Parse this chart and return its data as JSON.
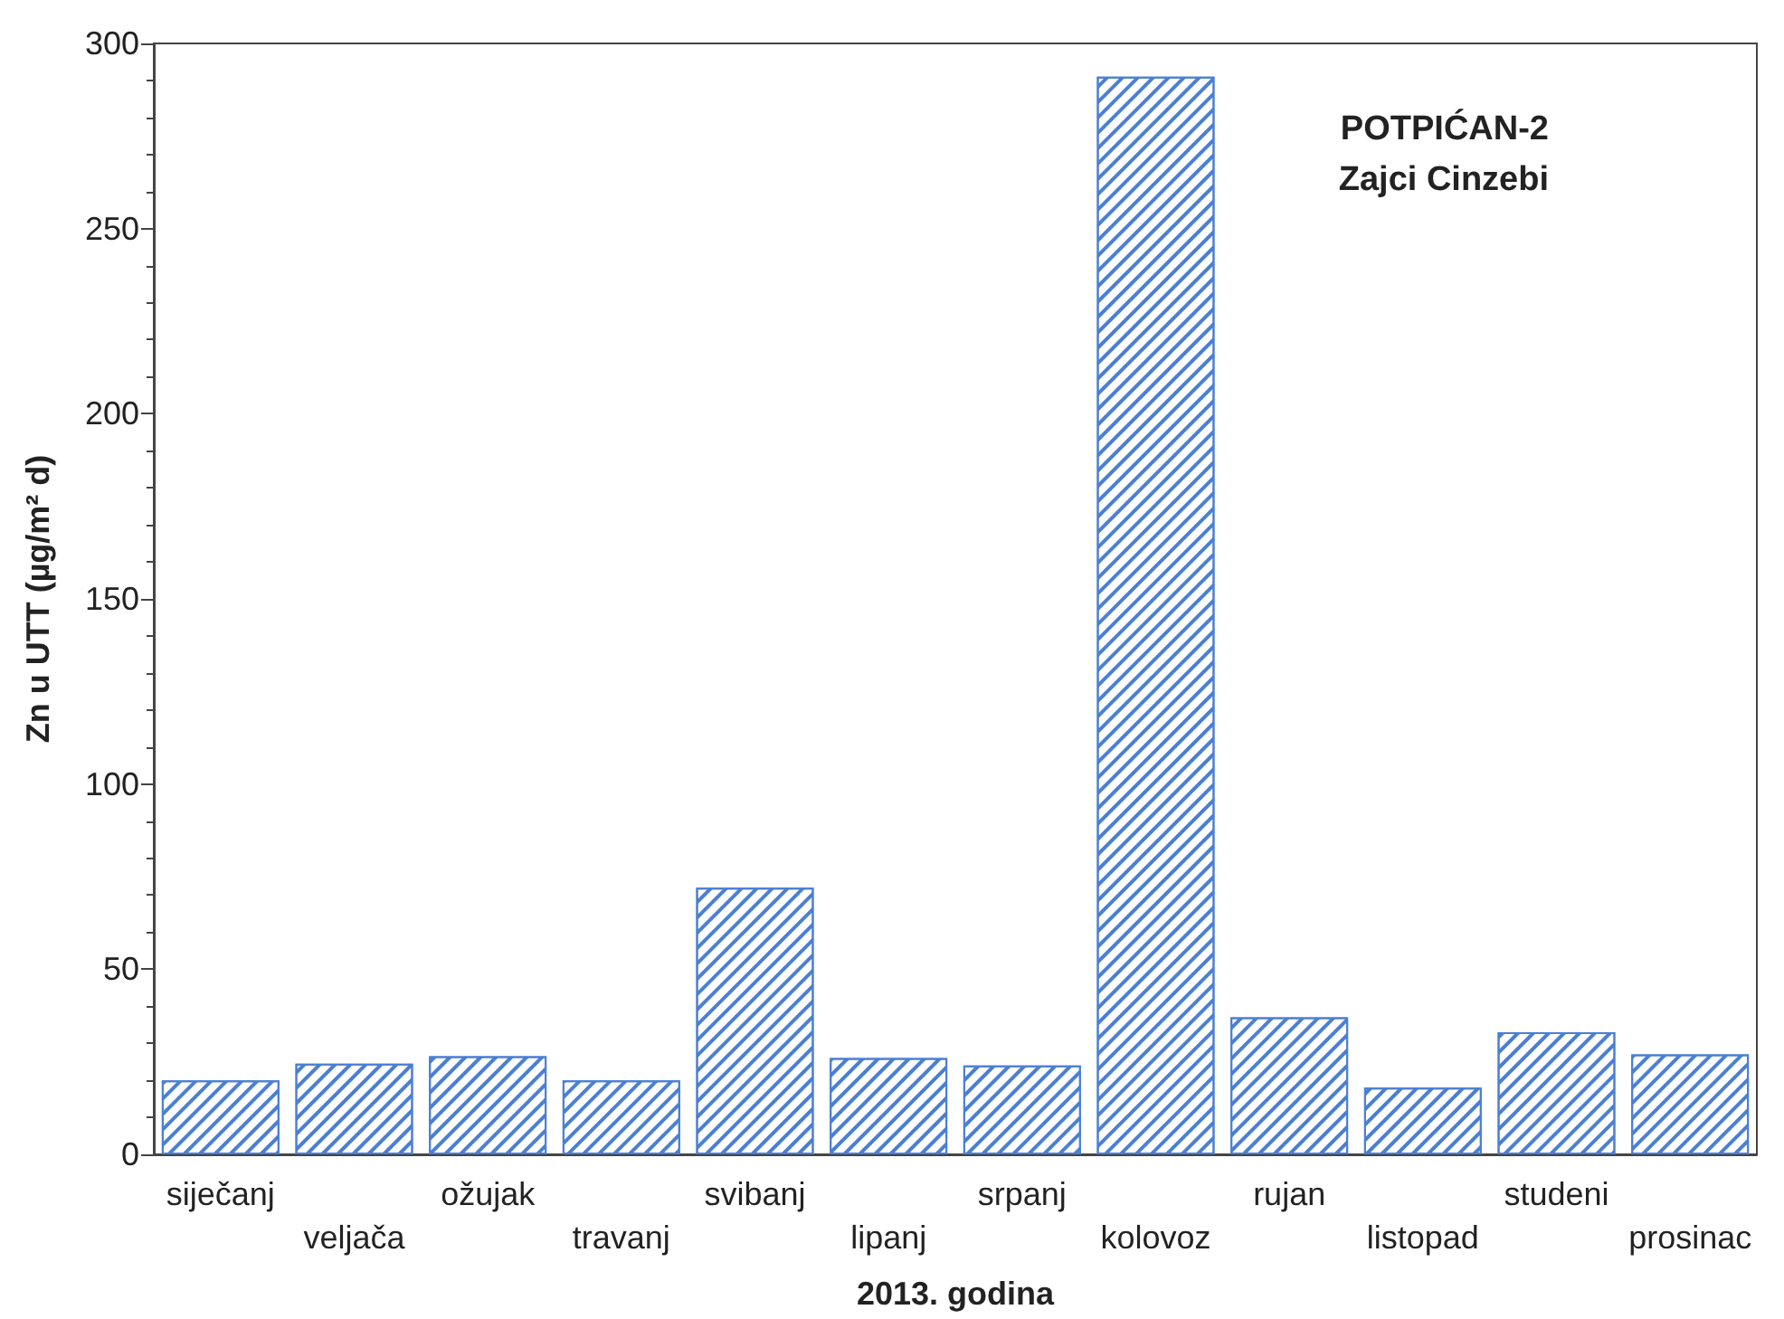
{
  "chart_data": {
    "type": "bar",
    "xlabel": "2013. godina",
    "ylabel": "Zn u UTT (µg/m² d)",
    "categories": [
      "siječanj",
      "veljača",
      "ožujak",
      "travanj",
      "svibanj",
      "lipanj",
      "srpanj",
      "kolovoz",
      "rujan",
      "listopad",
      "studeni",
      "prosinac"
    ],
    "series": [
      {
        "color": "#4a7fd4",
        "values": [
          20,
          24.5,
          26.5,
          20,
          72,
          26,
          24,
          291,
          37,
          18,
          33,
          27
        ]
      }
    ],
    "ylim": [
      0,
      300
    ],
    "yticks": [
      0,
      50,
      100,
      150,
      200,
      250,
      300
    ],
    "grid": false,
    "annotations": [
      "POTPIĆAN-2",
      "Zajci Cinzebi"
    ]
  }
}
